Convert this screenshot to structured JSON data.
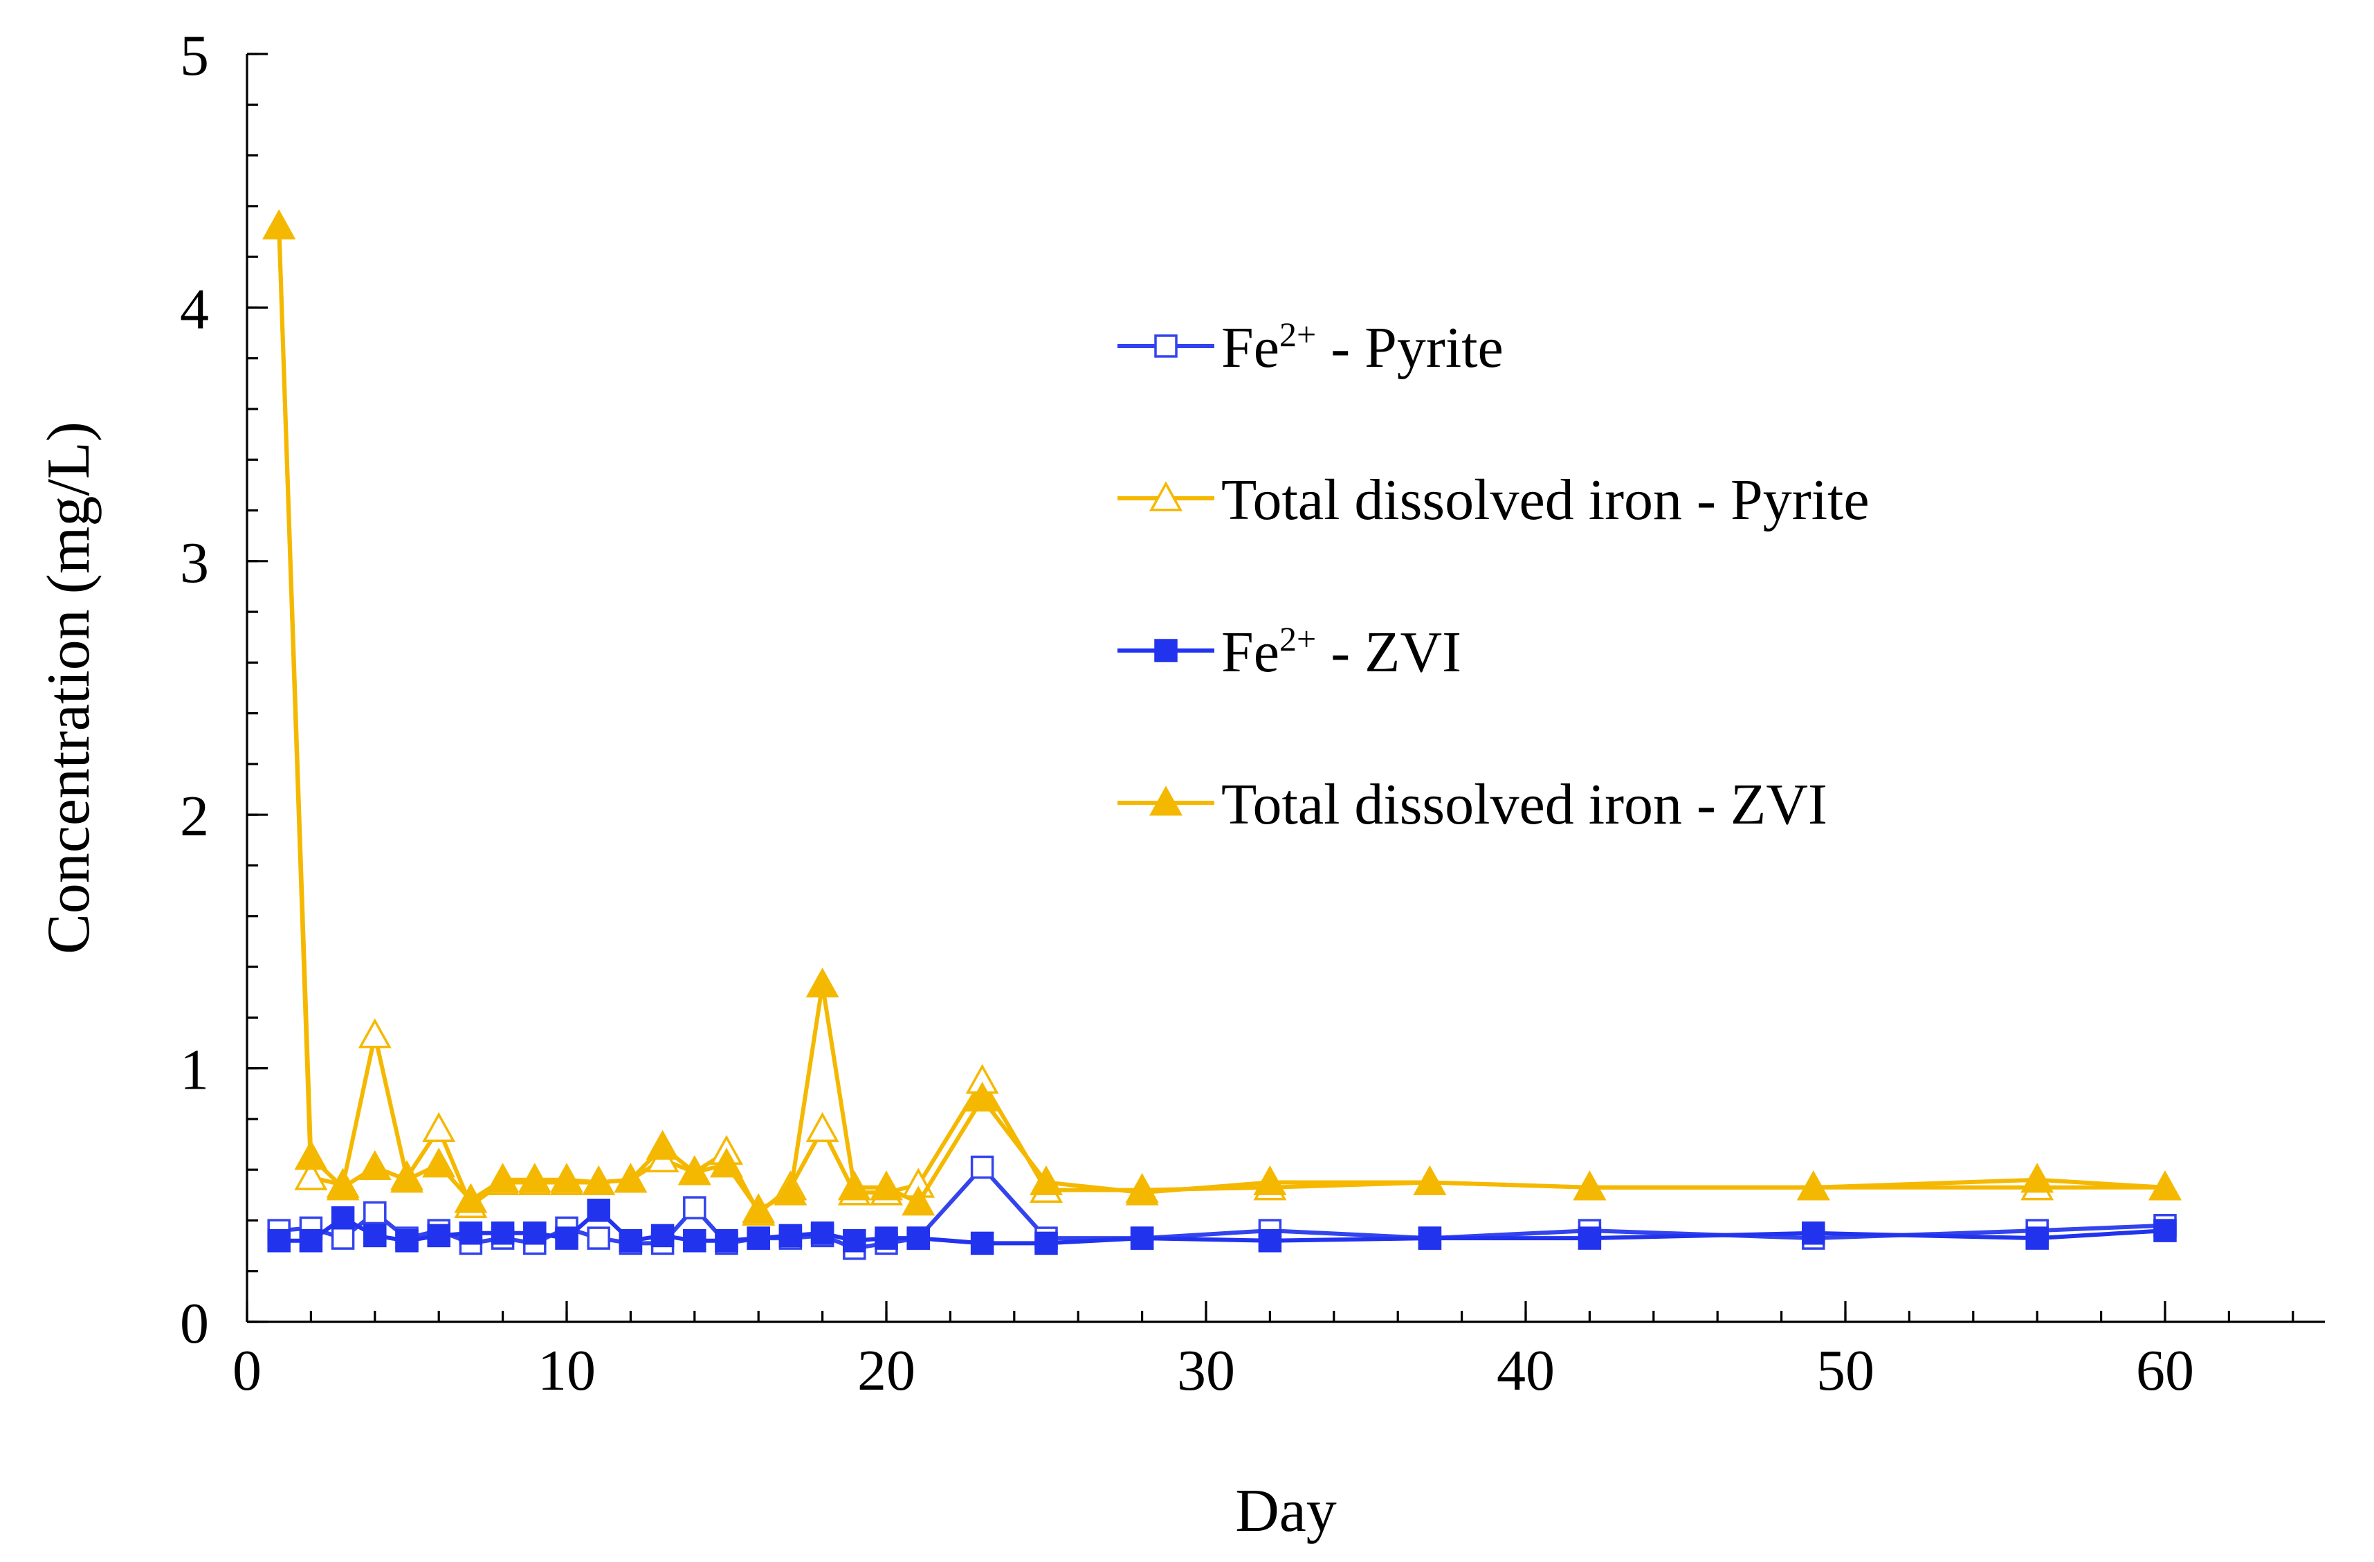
{
  "chart_data": {
    "type": "line",
    "title": "",
    "xlabel": "Day",
    "ylabel": "Concentration (mg/L)",
    "xlim": [
      0,
      65
    ],
    "ylim": [
      0,
      5
    ],
    "x_ticks": [
      0,
      10,
      20,
      30,
      40,
      50,
      60
    ],
    "y_ticks": [
      0,
      1,
      2,
      3,
      4,
      5
    ],
    "x_minor_step": 2,
    "y_minor_step": 0.2,
    "grid": false,
    "legend_position": "upper-right",
    "series": [
      {
        "name": "Fe²⁺ - Pyrite",
        "legend_parts": [
          "Fe",
          "2+",
          " - Pyrite"
        ],
        "color": "#3344EE",
        "marker": "square-open",
        "points": [
          [
            1,
            0.36
          ],
          [
            2,
            0.37
          ],
          [
            3,
            0.33
          ],
          [
            4,
            0.43
          ],
          [
            5,
            0.33
          ],
          [
            6,
            0.36
          ],
          [
            7,
            0.31
          ],
          [
            8,
            0.33
          ],
          [
            9,
            0.31
          ],
          [
            10,
            0.37
          ],
          [
            11,
            0.33
          ],
          [
            12,
            0.31
          ],
          [
            13,
            0.31
          ],
          [
            14,
            0.45
          ],
          [
            15,
            0.31
          ],
          [
            16,
            0.33
          ],
          [
            17,
            0.33
          ],
          [
            18,
            0.34
          ],
          [
            19,
            0.29
          ],
          [
            20,
            0.31
          ],
          [
            21,
            0.33
          ],
          [
            23,
            0.61
          ],
          [
            25,
            0.33
          ],
          [
            28,
            0.33
          ],
          [
            32,
            0.36
          ],
          [
            37,
            0.33
          ],
          [
            42,
            0.36
          ],
          [
            49,
            0.33
          ],
          [
            56,
            0.36
          ],
          [
            60,
            0.38
          ]
        ]
      },
      {
        "name": "Total dissolved iron - Pyrite",
        "legend_parts": [
          "Total dissolved iron - Pyrite"
        ],
        "color": "#F5B800",
        "marker": "triangle-open",
        "points": [
          [
            1,
            4.32
          ],
          [
            2,
            0.57
          ],
          [
            3,
            0.54
          ],
          [
            4,
            1.13
          ],
          [
            5,
            0.57
          ],
          [
            6,
            0.76
          ],
          [
            7,
            0.46
          ],
          [
            8,
            0.55
          ],
          [
            9,
            0.55
          ],
          [
            10,
            0.55
          ],
          [
            11,
            0.55
          ],
          [
            12,
            0.56
          ],
          [
            13,
            0.64
          ],
          [
            14,
            0.59
          ],
          [
            15,
            0.67
          ],
          [
            16,
            0.43
          ],
          [
            17,
            0.53
          ],
          [
            18,
            0.76
          ],
          [
            19,
            0.51
          ],
          [
            20,
            0.51
          ],
          [
            21,
            0.54
          ],
          [
            23,
            0.95
          ],
          [
            25,
            0.52
          ],
          [
            28,
            0.52
          ],
          [
            32,
            0.53
          ],
          [
            37,
            0.55
          ],
          [
            42,
            0.53
          ],
          [
            49,
            0.53
          ],
          [
            56,
            0.53
          ],
          [
            60,
            0.53
          ]
        ]
      },
      {
        "name": "Fe²⁺ - ZVI",
        "legend_parts": [
          "Fe",
          "2+",
          " - ZVI"
        ],
        "color": "#2233EE",
        "marker": "square-filled",
        "points": [
          [
            1,
            0.32
          ],
          [
            2,
            0.32
          ],
          [
            3,
            0.41
          ],
          [
            4,
            0.34
          ],
          [
            5,
            0.32
          ],
          [
            6,
            0.34
          ],
          [
            7,
            0.35
          ],
          [
            8,
            0.35
          ],
          [
            9,
            0.35
          ],
          [
            10,
            0.33
          ],
          [
            11,
            0.44
          ],
          [
            12,
            0.32
          ],
          [
            13,
            0.34
          ],
          [
            14,
            0.32
          ],
          [
            15,
            0.32
          ],
          [
            16,
            0.33
          ],
          [
            17,
            0.34
          ],
          [
            18,
            0.35
          ],
          [
            19,
            0.32
          ],
          [
            20,
            0.33
          ],
          [
            21,
            0.33
          ],
          [
            23,
            0.31
          ],
          [
            25,
            0.31
          ],
          [
            28,
            0.33
          ],
          [
            32,
            0.32
          ],
          [
            37,
            0.33
          ],
          [
            42,
            0.33
          ],
          [
            49,
            0.35
          ],
          [
            56,
            0.33
          ],
          [
            60,
            0.36
          ]
        ]
      },
      {
        "name": "Total dissolved iron - ZVI",
        "legend_parts": [
          "Total dissolved iron - ZVI"
        ],
        "color": "#F5B800",
        "marker": "triangle-filled",
        "points": [
          [
            1,
            4.32
          ],
          [
            2,
            0.65
          ],
          [
            3,
            0.53
          ],
          [
            4,
            0.61
          ],
          [
            5,
            0.56
          ],
          [
            6,
            0.62
          ],
          [
            7,
            0.48
          ],
          [
            8,
            0.56
          ],
          [
            9,
            0.56
          ],
          [
            10,
            0.56
          ],
          [
            11,
            0.55
          ],
          [
            12,
            0.56
          ],
          [
            13,
            0.69
          ],
          [
            14,
            0.59
          ],
          [
            15,
            0.62
          ],
          [
            16,
            0.44
          ],
          [
            17,
            0.51
          ],
          [
            18,
            1.33
          ],
          [
            19,
            0.53
          ],
          [
            20,
            0.53
          ],
          [
            21,
            0.47
          ],
          [
            23,
            0.88
          ],
          [
            25,
            0.55
          ],
          [
            28,
            0.51
          ],
          [
            32,
            0.55
          ],
          [
            37,
            0.55
          ],
          [
            42,
            0.53
          ],
          [
            49,
            0.53
          ],
          [
            56,
            0.56
          ],
          [
            60,
            0.53
          ]
        ]
      }
    ]
  }
}
